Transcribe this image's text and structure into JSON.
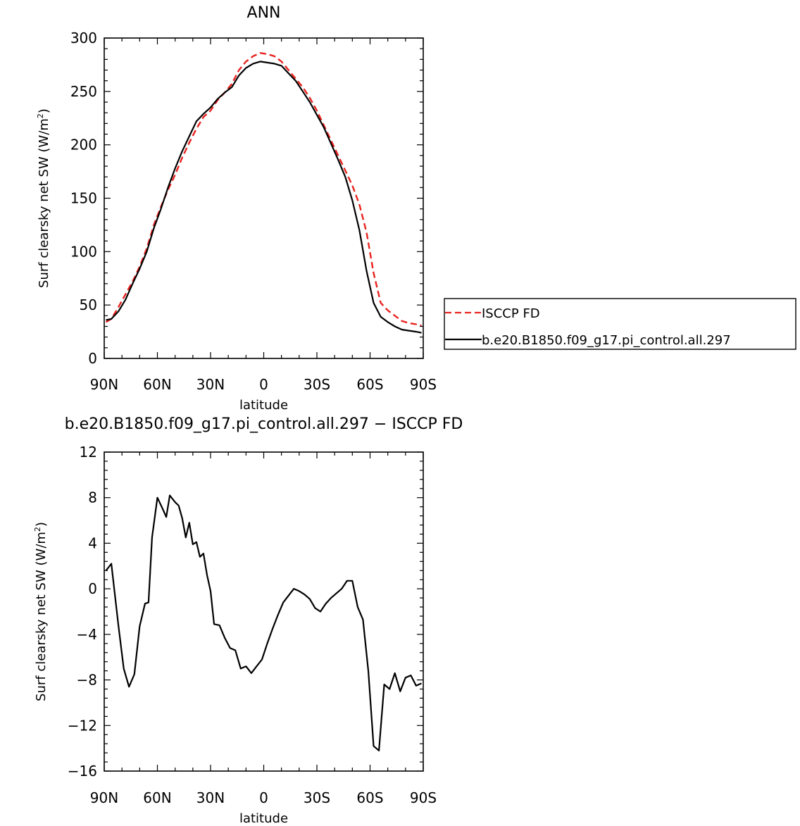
{
  "chart_data": [
    {
      "type": "line",
      "title": "ANN",
      "xlabel": "latitude",
      "ylabel": "Surf clearsky net SW (W/m²)",
      "xlim": [
        90,
        -90
      ],
      "ylim": [
        0,
        300
      ],
      "x_ticks": [
        90,
        60,
        30,
        0,
        -30,
        -60,
        -90
      ],
      "x_tick_labels": [
        "90N",
        "60N",
        "30N",
        "0",
        "30S",
        "60S",
        "90S"
      ],
      "y_ticks": [
        0,
        50,
        100,
        150,
        200,
        250,
        300
      ],
      "y_tick_labels": [
        "0",
        "50",
        "100",
        "150",
        "200",
        "250",
        "300"
      ],
      "legend": "right",
      "series": [
        {
          "name": "ISCCP FD",
          "color": "#e8231f",
          "dash": "dashed",
          "x": [
            89,
            86,
            82,
            78,
            74,
            70,
            66,
            62,
            58,
            54,
            50,
            46,
            42,
            38,
            34,
            30,
            26,
            22,
            18,
            14,
            10,
            6,
            2,
            -2,
            -6,
            -10,
            -14,
            -18,
            -22,
            -26,
            -30,
            -34,
            -38,
            -42,
            -46,
            -50,
            -54,
            -58,
            -62,
            -66,
            -70,
            -74,
            -78,
            -82,
            -86,
            -89
          ],
          "y": [
            34,
            37,
            48,
            60,
            72,
            86,
            103,
            125,
            142,
            158,
            172,
            188,
            202,
            215,
            226,
            232,
            242,
            249,
            257,
            270,
            278,
            283,
            286,
            285,
            283,
            278,
            270,
            262,
            254,
            244,
            232,
            218,
            204,
            190,
            176,
            162,
            144,
            118,
            80,
            52,
            45,
            40,
            35,
            33,
            32,
            31
          ]
        },
        {
          "name": "b.e20.B1850.f09_g17.pi_control.all.297",
          "color": "#000000",
          "dash": "solid",
          "x": [
            89,
            86,
            82,
            78,
            74,
            70,
            66,
            62,
            58,
            54,
            50,
            46,
            42,
            38,
            34,
            30,
            26,
            22,
            18,
            14,
            10,
            6,
            2,
            -2,
            -6,
            -10,
            -14,
            -18,
            -22,
            -26,
            -30,
            -34,
            -38,
            -42,
            -46,
            -50,
            -54,
            -58,
            -62,
            -66,
            -70,
            -74,
            -78,
            -82,
            -86,
            -89
          ],
          "y": [
            36,
            37,
            44,
            55,
            70,
            84,
            100,
            122,
            140,
            160,
            178,
            194,
            208,
            222,
            229,
            235,
            243,
            249,
            254,
            265,
            272,
            276,
            278,
            277,
            276,
            274,
            267,
            260,
            250,
            240,
            228,
            216,
            201,
            186,
            170,
            148,
            120,
            82,
            52,
            39,
            34,
            30,
            27,
            26,
            25,
            24
          ]
        }
      ]
    },
    {
      "type": "line",
      "title": "b.e20.B1850.f09_g17.pi_control.all.297 − ISCCP FD",
      "xlabel": "latitude",
      "ylabel": "Surf clearsky net SW (W/m²)",
      "xlim": [
        90,
        -90
      ],
      "ylim": [
        -16,
        12
      ],
      "x_ticks": [
        90,
        60,
        30,
        0,
        -30,
        -60,
        -90
      ],
      "x_tick_labels": [
        "90N",
        "60N",
        "30N",
        "0",
        "30S",
        "60S",
        "90S"
      ],
      "y_ticks": [
        -16,
        -12,
        -8,
        -4,
        0,
        4,
        8,
        12
      ],
      "y_tick_labels": [
        "−16",
        "−12",
        "−8",
        "−4",
        "0",
        "4",
        "8",
        "12"
      ],
      "series": [
        {
          "color": "#000000",
          "dash": "solid",
          "x": [
            89,
            86,
            82,
            79,
            76,
            73,
            70,
            67,
            65,
            63,
            60,
            57,
            55,
            53,
            50,
            48,
            46,
            44,
            42,
            40,
            38,
            36,
            34,
            32,
            30,
            28,
            25,
            22,
            19,
            16,
            13,
            10,
            7,
            4,
            1,
            -2,
            -5,
            -8,
            -11,
            -14,
            -17,
            -20,
            -23,
            -26,
            -29,
            -32,
            -35,
            -38,
            -41,
            -44,
            -47,
            -50,
            -53,
            -56,
            -59,
            -62,
            -65,
            -68,
            -71,
            -74,
            -77,
            -80,
            -83,
            -86,
            -89
          ],
          "y": [
            1.6,
            2.2,
            -3.2,
            -7.0,
            -8.6,
            -7.5,
            -3.3,
            -1.3,
            -1.2,
            4.5,
            8.0,
            7.0,
            6.3,
            8.2,
            7.6,
            7.3,
            6.2,
            4.5,
            5.8,
            3.9,
            4.1,
            2.8,
            3.1,
            1.2,
            -0.2,
            -3.1,
            -3.2,
            -4.3,
            -5.2,
            -5.4,
            -7.0,
            -6.8,
            -7.4,
            -6.8,
            -6.2,
            -4.8,
            -3.5,
            -2.3,
            -1.2,
            -0.6,
            0.0,
            -0.2,
            -0.5,
            -0.9,
            -1.7,
            -2.0,
            -1.3,
            -0.8,
            -0.4,
            0.0,
            0.7,
            0.7,
            -1.6,
            -2.7,
            -7.2,
            -13.8,
            -14.2,
            -8.4,
            -8.8,
            -7.4,
            -9.0,
            -7.8,
            -7.6,
            -8.5,
            -8.3
          ]
        }
      ]
    }
  ]
}
